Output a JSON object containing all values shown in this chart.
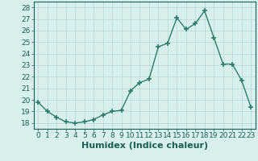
{
  "x": [
    0,
    1,
    2,
    3,
    4,
    5,
    6,
    7,
    8,
    9,
    10,
    11,
    12,
    13,
    14,
    15,
    16,
    17,
    18,
    19,
    20,
    21,
    22,
    23
  ],
  "y": [
    19.8,
    19.0,
    18.5,
    18.1,
    18.0,
    18.1,
    18.3,
    18.7,
    19.0,
    19.1,
    20.8,
    21.5,
    21.8,
    24.6,
    24.9,
    27.1,
    26.1,
    26.6,
    27.7,
    25.4,
    23.1,
    23.1,
    21.7,
    19.4
  ],
  "line_color": "#2e7b6e",
  "marker": "+",
  "markersize": 4,
  "markeredgewidth": 1.2,
  "linewidth": 1.0,
  "bg_color": "#d7f0eb",
  "grid_color": "#b8d8d3",
  "xlabel": "Humidex (Indice chaleur)",
  "xlim": [
    -0.5,
    23.5
  ],
  "ylim": [
    17.5,
    28.5
  ],
  "yticks": [
    18,
    19,
    20,
    21,
    22,
    23,
    24,
    25,
    26,
    27,
    28
  ],
  "xticks": [
    0,
    1,
    2,
    3,
    4,
    5,
    6,
    7,
    8,
    9,
    10,
    11,
    12,
    13,
    14,
    15,
    16,
    17,
    18,
    19,
    20,
    21,
    22,
    23
  ],
  "label_color": "#1a5f50",
  "tick_color": "#1a5f50",
  "axis_color": "#1a5f50",
  "xlabel_fontsize": 8,
  "tick_fontsize": 6.5
}
